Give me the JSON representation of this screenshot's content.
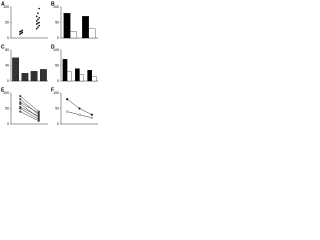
{
  "chart_data": [
    {
      "type": "scatter",
      "panel": "A",
      "x": [
        1,
        1,
        1,
        1,
        1,
        1,
        2,
        2,
        2,
        2,
        2,
        2,
        2,
        2,
        2,
        2,
        2,
        2
      ],
      "values": [
        12,
        15,
        18,
        20,
        22,
        25,
        30,
        35,
        40,
        45,
        48,
        50,
        55,
        60,
        65,
        70,
        80,
        95
      ],
      "color": "#000000",
      "xlim": [
        0.4,
        2.6
      ],
      "ylim": [
        0,
        100
      ],
      "yticks": [
        0,
        50,
        100
      ]
    },
    {
      "type": "bar",
      "panel": "B",
      "categories": [
        null,
        null
      ],
      "series": [
        {
          "color": "#000000",
          "values": [
            80,
            70
          ]
        },
        {
          "color": "#ffffff",
          "values": [
            20,
            30
          ]
        }
      ],
      "ylim": [
        0,
        100
      ],
      "yticks": [
        0,
        50,
        100
      ]
    },
    {
      "type": "bar",
      "panel": "C",
      "categories": [
        null,
        null,
        null,
        null
      ],
      "series": [
        {
          "color": "#333333",
          "values": [
            60,
            20,
            25,
            30
          ]
        }
      ],
      "ylim": [
        0,
        80
      ],
      "yticks": [
        0,
        40,
        80
      ]
    },
    {
      "type": "bar",
      "panel": "D",
      "categories": [
        null,
        null,
        null
      ],
      "series": [
        {
          "color": "#000000",
          "values": [
            70,
            40,
            35
          ]
        },
        {
          "color": "#ffffff",
          "values": [
            30,
            20,
            15
          ]
        }
      ],
      "ylim": [
        0,
        100
      ],
      "yticks": [
        0,
        50,
        100
      ]
    },
    {
      "type": "line",
      "panel": "E",
      "categories": [
        null,
        null
      ],
      "series": [
        {
          "color": "#555555",
          "values": [
            90,
            40
          ]
        },
        {
          "color": "#555555",
          "values": [
            80,
            30
          ]
        },
        {
          "color": "#555555",
          "values": [
            70,
            35
          ]
        },
        {
          "color": "#555555",
          "values": [
            65,
            20
          ]
        },
        {
          "color": "#555555",
          "values": [
            55,
            25
          ]
        },
        {
          "color": "#555555",
          "values": [
            50,
            15
          ]
        },
        {
          "color": "#555555",
          "values": [
            40,
            10
          ]
        }
      ],
      "ylim": [
        0,
        100
      ],
      "yticks": [
        0,
        50,
        100
      ]
    },
    {
      "type": "line",
      "panel": "F",
      "categories": [
        null,
        null,
        null
      ],
      "series": [
        {
          "color": "#000000",
          "values": [
            80,
            50,
            30
          ]
        },
        {
          "color": "#ffffff",
          "values": [
            40,
            30,
            20
          ]
        }
      ],
      "ylim": [
        0,
        100
      ],
      "yticks": [
        0,
        50,
        100
      ]
    }
  ]
}
